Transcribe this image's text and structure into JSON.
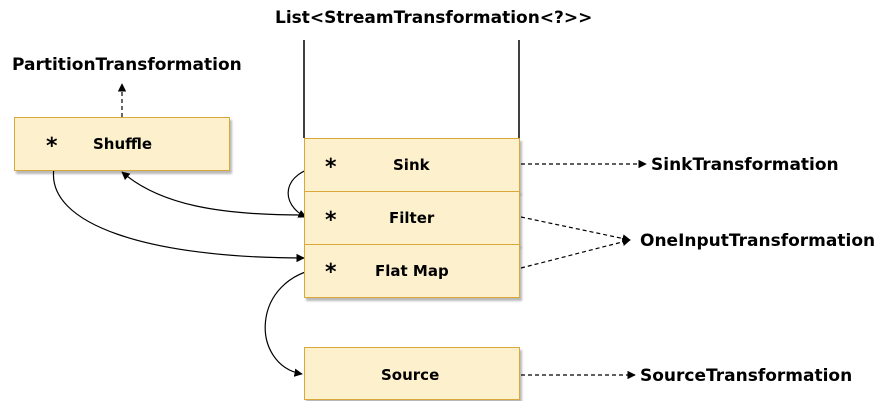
{
  "list_title": "List<StreamTransformation<?>>",
  "stack": {
    "sink": "Sink",
    "filter": "Filter",
    "flatmap": "Flat Map"
  },
  "source": "Source",
  "shuffle": "Shuffle",
  "marker": "*",
  "targets": {
    "partition": "PartitionTransformation",
    "sink": "SinkTransformation",
    "one_input": "OneInputTransformation",
    "source": "SourceTransformation"
  },
  "colors": {
    "box_fill": "#fdf0cd",
    "box_border": "#d8a93a"
  }
}
